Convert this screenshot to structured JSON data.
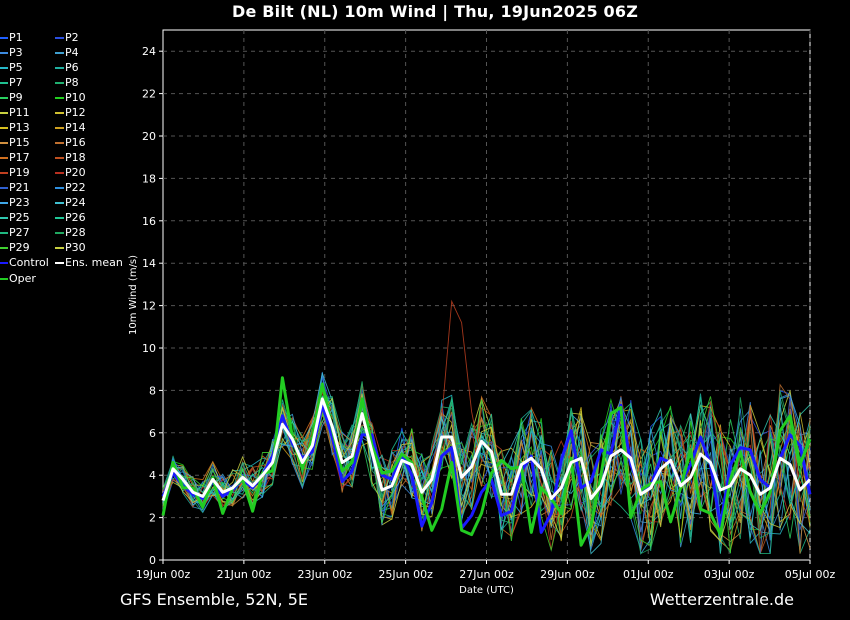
{
  "title": "De Bilt  (NL)  10m Wind | Thu, 19Jun2025 06Z",
  "footer": {
    "left": "GFS Ensemble, 52N, 5E",
    "right": "Wetterzentrale.de"
  },
  "colors": {
    "background": "#000000",
    "grid": "#555555",
    "control": "#1a1aff",
    "oper": "#22cc22",
    "mean": "#ffffff"
  },
  "chart_data": {
    "type": "line",
    "title": "De Bilt  (NL)  10m Wind | Thu, 19Jun2025 06Z",
    "xlabel": "Date (UTC)",
    "ylabel": "10m Wind (m/s)",
    "ylim": [
      0,
      25
    ],
    "yticks": [
      0,
      2,
      4,
      6,
      8,
      10,
      12,
      14,
      16,
      18,
      20,
      22,
      24
    ],
    "xlim_hours": [
      0,
      384
    ],
    "xtick_labels": [
      "19Jun 00z",
      "21Jun 00z",
      "23Jun 00z",
      "25Jun 00z",
      "27Jun 00z",
      "29Jun 00z",
      "01Jul 00z",
      "03Jul 00z",
      "05Jul 00z"
    ],
    "grid": true,
    "legend_position": "left-outside",
    "series": [
      {
        "name": "P1",
        "color": "#1f5fff"
      },
      {
        "name": "P2",
        "color": "#2b4fe0"
      },
      {
        "name": "P3",
        "color": "#3d8be0"
      },
      {
        "name": "P4",
        "color": "#3f9fcf"
      },
      {
        "name": "P5",
        "color": "#27b8c8"
      },
      {
        "name": "P6",
        "color": "#20b0a0"
      },
      {
        "name": "P7",
        "color": "#20c090"
      },
      {
        "name": "P8",
        "color": "#20b070"
      },
      {
        "name": "P9",
        "color": "#2ad060"
      },
      {
        "name": "P10",
        "color": "#22d020"
      },
      {
        "name": "P11",
        "color": "#c8d040"
      },
      {
        "name": "P12",
        "color": "#d0c030"
      },
      {
        "name": "P13",
        "color": "#d8c020"
      },
      {
        "name": "P14",
        "color": "#d0a020"
      },
      {
        "name": "P15",
        "color": "#d09040"
      },
      {
        "name": "P16",
        "color": "#c07030"
      },
      {
        "name": "P17",
        "color": "#d07020"
      },
      {
        "name": "P18",
        "color": "#c05020"
      },
      {
        "name": "P19",
        "color": "#c04020"
      },
      {
        "name": "P20",
        "color": "#b83020"
      },
      {
        "name": "P21",
        "color": "#3060d0"
      },
      {
        "name": "P22",
        "color": "#3090e0"
      },
      {
        "name": "P23",
        "color": "#40a8e8"
      },
      {
        "name": "P24",
        "color": "#40c0d0"
      },
      {
        "name": "P25",
        "color": "#30c8b0"
      },
      {
        "name": "P26",
        "color": "#20c898"
      },
      {
        "name": "P27",
        "color": "#20b880"
      },
      {
        "name": "P28",
        "color": "#20a860"
      },
      {
        "name": "P29",
        "color": "#40d030"
      },
      {
        "name": "P30",
        "color": "#c8d040"
      },
      {
        "name": "Control",
        "color": "#1a1aff"
      },
      {
        "name": "Ens. mean",
        "color": "#ffffff"
      },
      {
        "name": "Oper",
        "color": "#22cc22"
      }
    ],
    "mean_values": [
      2.8,
      4.3,
      3.8,
      3.2,
      3.0,
      3.8,
      3.2,
      3.4,
      3.9,
      3.5,
      4.0,
      4.6,
      6.4,
      5.7,
      4.6,
      5.4,
      7.6,
      6.3,
      4.6,
      4.9,
      6.9,
      5.1,
      3.3,
      3.5,
      4.7,
      4.5,
      3.2,
      3.8,
      5.8,
      5.8,
      3.9,
      4.4,
      5.6,
      5.1,
      3.1,
      3.1,
      4.5,
      4.8,
      4.3,
      2.9,
      3.4,
      4.6,
      4.8,
      2.9,
      3.5,
      4.9,
      5.2,
      4.8,
      3.1,
      3.4,
      4.3,
      4.7,
      3.5,
      3.9,
      5.0,
      4.6,
      3.3,
      3.5,
      4.3,
      4.0,
      3.1,
      3.4,
      4.8,
      4.5,
      3.3,
      3.8
    ],
    "control_values": [
      3.0,
      4.1,
      3.5,
      3.1,
      2.9,
      3.7,
      3.0,
      3.3,
      3.8,
      3.4,
      4.0,
      4.9,
      6.8,
      5.5,
      4.8,
      5.1,
      7.3,
      5.8,
      3.7,
      4.2,
      5.9,
      5.9,
      4.0,
      3.8,
      5.0,
      4.0,
      1.6,
      2.7,
      4.9,
      5.3,
      1.5,
      2.1,
      3.2,
      3.8,
      2.1,
      2.3,
      4.2,
      4.9,
      1.3,
      2.2,
      4.7,
      6.1,
      3.4,
      3.7,
      5.2,
      5.0,
      7.3,
      4.5,
      3.3,
      3.5,
      4.8,
      4.6,
      3.6,
      4.5,
      5.8,
      4.5,
      1.6,
      4.5,
      5.3,
      5.2,
      3.8,
      3.4,
      4.8,
      5.9,
      5.4,
      3.1
    ],
    "oper_values": [
      2.1,
      4.6,
      3.4,
      3.4,
      2.5,
      3.9,
      2.2,
      3.4,
      3.8,
      2.3,
      4.1,
      4.2,
      8.6,
      5.8,
      4.3,
      5.7,
      8.3,
      6.2,
      4.2,
      4.6,
      7.6,
      5.4,
      4.1,
      4.2,
      5.0,
      4.6,
      3.0,
      1.4,
      2.4,
      4.6,
      1.4,
      1.2,
      2.2,
      4.1,
      4.7,
      4.3,
      4.4,
      1.3,
      3.4,
      2.9,
      2.2,
      4.8,
      0.7,
      1.6,
      4.0,
      6.9,
      7.2,
      2.0,
      3.3,
      3.6,
      3.7,
      1.8,
      3.4,
      5.2,
      2.4,
      2.2,
      1.2,
      3.8,
      5.1,
      3.2,
      2.2,
      3.2,
      6.1,
      6.8,
      4.5,
      5.7
    ]
  },
  "legend": {
    "col1": [
      "P1",
      "P3",
      "P5",
      "P7",
      "P9",
      "P11",
      "P13",
      "P15",
      "P17",
      "P19",
      "P21",
      "P23",
      "P25",
      "P27",
      "P29",
      "Control",
      "Oper"
    ],
    "col2": [
      "P2",
      "P4",
      "P6",
      "P8",
      "P10",
      "P12",
      "P14",
      "P16",
      "P18",
      "P20",
      "P22",
      "P24",
      "P26",
      "P28",
      "P30",
      "Ens. mean"
    ]
  }
}
